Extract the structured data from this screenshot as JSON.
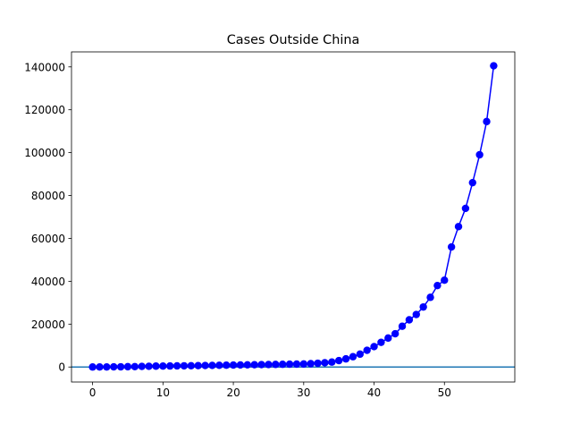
{
  "chart_data": {
    "type": "line",
    "title": "Cases Outside China",
    "xlabel": "",
    "ylabel": "",
    "xlim": [
      -3,
      60
    ],
    "ylim": [
      -7000,
      147000
    ],
    "xticks": [
      0,
      10,
      20,
      30,
      40,
      50
    ],
    "yticks": [
      0,
      20000,
      40000,
      60000,
      80000,
      100000,
      120000,
      140000
    ],
    "grid": false,
    "legend": "none",
    "hline": {
      "y": 0,
      "color": "#1f77b4"
    },
    "series": [
      {
        "color": "#0000ff",
        "marker": "circle",
        "x": [
          0,
          1,
          2,
          3,
          4,
          5,
          6,
          7,
          8,
          9,
          10,
          11,
          12,
          13,
          14,
          15,
          16,
          17,
          18,
          19,
          20,
          21,
          22,
          23,
          24,
          25,
          26,
          27,
          28,
          29,
          30,
          31,
          32,
          33,
          34,
          35,
          36,
          37,
          38,
          39,
          40,
          41,
          42,
          43,
          44,
          45,
          46,
          47,
          48,
          49,
          50,
          51,
          52,
          53,
          54,
          55,
          56,
          57
        ],
        "y": [
          0,
          7,
          26,
          65,
          85,
          144,
          172,
          267,
          340,
          402,
          432,
          470,
          522,
          559,
          591,
          650,
          700,
          760,
          800,
          860,
          900,
          950,
          1000,
          1050,
          1100,
          1150,
          1200,
          1250,
          1300,
          1350,
          1400,
          1550,
          1750,
          2000,
          2300,
          3000,
          3800,
          4800,
          6000,
          7800,
          9500,
          11500,
          13500,
          15500,
          19000,
          22000,
          24500,
          28000,
          32500,
          38000,
          40500,
          56000,
          65500,
          74000,
          86000,
          99000,
          114500,
          140500
        ]
      }
    ]
  }
}
